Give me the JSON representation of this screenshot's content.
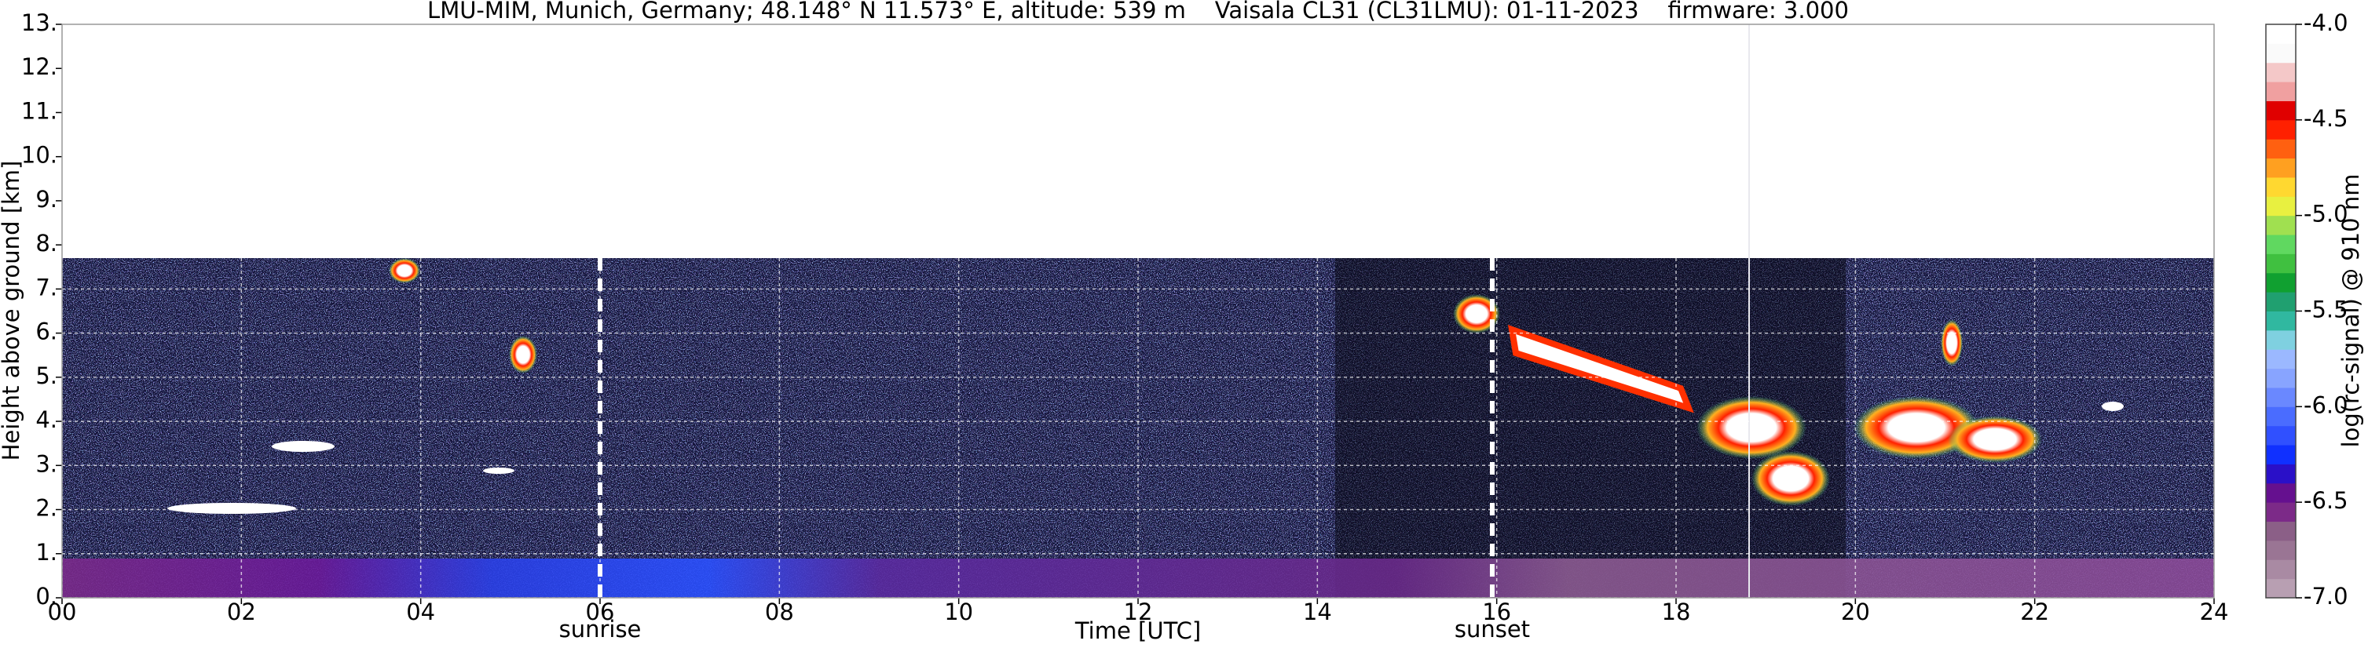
{
  "chart_data": {
    "type": "heatmap",
    "title": "LMU-MIM, Munich, Germany; 48.148° N 11.573° E, altitude: 539 m    Vaisala CL31 (CL31LMU): 01-11-2023    firmware: 3.000",
    "xlabel": "Time [UTC]",
    "ylabel": "Height above ground [km]",
    "colorbar_label": "log(rc-signal) @ 910 nm",
    "xlim": [
      0,
      24
    ],
    "xticks": [
      {
        "value": 0,
        "label": "00"
      },
      {
        "value": 2,
        "label": "02"
      },
      {
        "value": 4,
        "label": "04"
      },
      {
        "value": 6,
        "label": "06"
      },
      {
        "value": 8,
        "label": "08"
      },
      10,
      12,
      14,
      16,
      18,
      20,
      22,
      24
    ],
    "ylim": [
      0,
      13
    ],
    "yticks": [
      {
        "value": 0,
        "label": "0."
      },
      {
        "value": 1,
        "label": "1."
      },
      {
        "value": 2,
        "label": "2."
      },
      {
        "value": 3,
        "label": "3."
      },
      {
        "value": 4,
        "label": "4."
      },
      {
        "value": 5,
        "label": "5."
      },
      {
        "value": 6,
        "label": "6."
      },
      {
        "value": 7,
        "label": "7."
      },
      {
        "value": 8,
        "label": "8."
      },
      {
        "value": 9,
        "label": "9."
      },
      {
        "value": 10,
        "label": "10."
      },
      {
        "value": 11,
        "label": "11."
      },
      {
        "value": 12,
        "label": "12."
      },
      {
        "value": 13,
        "label": "13."
      }
    ],
    "grid": true,
    "colorbar_lim": [
      -7,
      -4
    ],
    "colorbar_ticks": [
      {
        "value": -4.0,
        "label": "-4.0"
      },
      {
        "value": -4.5,
        "label": "-4.5"
      },
      {
        "value": -5.0,
        "label": "-5.0"
      },
      {
        "value": -5.5,
        "label": "-5.5"
      },
      {
        "value": -6.0,
        "label": "-6.0"
      },
      {
        "value": -6.5,
        "label": "-6.5"
      },
      {
        "value": -7.0,
        "label": "-7.0"
      }
    ],
    "colorbar_colors": [
      "#b89fb2",
      "#a98aa3",
      "#9a7594",
      "#8b5f87",
      "#7c2a88",
      "#65108f",
      "#2a10c8",
      "#1030ff",
      "#3050ff",
      "#4a6cff",
      "#6a88ff",
      "#88a4ff",
      "#9bb8ff",
      "#7fd0e0",
      "#30b8a0",
      "#20a070",
      "#10a030",
      "#40c040",
      "#60d860",
      "#a0e050",
      "#e8f040",
      "#ffd830",
      "#ffa020",
      "#ff6010",
      "#ff2000",
      "#e00000",
      "#f0a0a0",
      "#f4c8c8",
      "#fafafa",
      "#ffffff"
    ],
    "annotations": [
      {
        "text": "sunrise",
        "x": 6
      },
      {
        "text": "sunset",
        "x": 15.95
      }
    ]
  }
}
